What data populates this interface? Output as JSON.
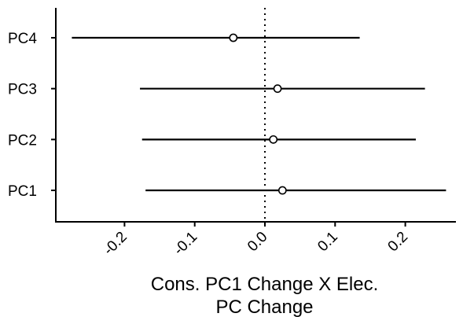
{
  "chart_data": {
    "type": "forest",
    "xlabel_lines": [
      "Cons. PC1 Change X Elec.",
      "PC Change"
    ],
    "ylabel": "",
    "xlim": [
      -0.3,
      0.29
    ],
    "x_ticks": [
      -0.2,
      -0.1,
      0.0,
      0.1,
      0.2
    ],
    "x_tick_labels": [
      "-0.2",
      "-0.1",
      "0.0",
      "0.1",
      "0.2"
    ],
    "reference_line": 0.0,
    "grid": false,
    "categories": [
      "PC4",
      "PC3",
      "PC2",
      "PC1"
    ],
    "estimates": [
      {
        "label": "PC4",
        "estimate": -0.045,
        "lower": -0.275,
        "upper": 0.135
      },
      {
        "label": "PC3",
        "estimate": 0.018,
        "lower": -0.178,
        "upper": 0.228
      },
      {
        "label": "PC2",
        "estimate": 0.012,
        "lower": -0.175,
        "upper": 0.215
      },
      {
        "label": "PC1",
        "estimate": 0.025,
        "lower": -0.17,
        "upper": 0.258
      }
    ]
  }
}
